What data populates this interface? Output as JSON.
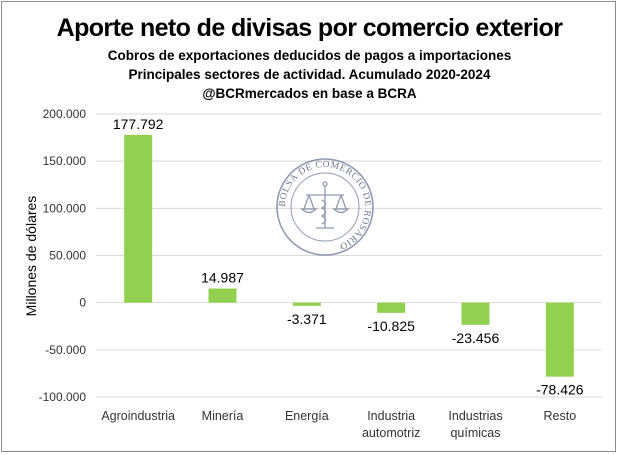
{
  "chart_data": {
    "type": "bar",
    "title": "Aporte neto de divisas por comercio exterior",
    "subtitle": [
      "Cobros de exportaciones deducidos de pagos a importaciones",
      "Principales sectores de actividad. Acumulado 2020-2024",
      "@BCRmercados en base a BCRA"
    ],
    "ylabel": "Millones de dólares",
    "xlabel": "",
    "categories": [
      [
        "Agroindustria"
      ],
      [
        "Minería"
      ],
      [
        "Energía"
      ],
      [
        "Industria",
        "automotriz"
      ],
      [
        "Industrias",
        "químicas"
      ],
      [
        "Resto"
      ]
    ],
    "values": [
      177792,
      14987,
      -3371,
      -10825,
      -23456,
      -78426
    ],
    "data_labels": [
      "177.792",
      "14.987",
      "-3.371",
      "-10.825",
      "-23.456",
      "-78.426"
    ],
    "ylim": [
      -100000,
      200000
    ],
    "yticks": [
      200000,
      150000,
      100000,
      50000,
      0,
      -50000,
      -100000
    ],
    "ytick_labels": [
      "200.000",
      "150.000",
      "100.000",
      "50.000",
      "0",
      "-50.000",
      "-100.000"
    ],
    "grid": true,
    "bar_color": "#92d050",
    "grid_color": "#d9d9d9",
    "watermark_text": "BOLSA DE COMERCIO DE ROSARIO"
  }
}
